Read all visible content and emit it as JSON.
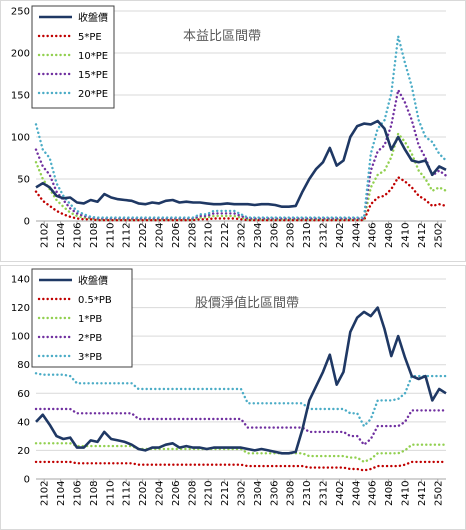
{
  "chart_data": [
    {
      "type": "line",
      "title": "本益比區間帶",
      "ylim": [
        0,
        250
      ],
      "yticks": [
        0,
        50,
        100,
        150,
        200,
        250
      ],
      "xticks": [
        "2102",
        "2104",
        "2106",
        "2108",
        "2110",
        "2112",
        "2202",
        "2204",
        "2206",
        "2208",
        "2210",
        "2212",
        "2302",
        "2304",
        "2306",
        "2308",
        "2310",
        "2312",
        "2402",
        "2404",
        "2406",
        "2408",
        "2410",
        "2412",
        "2502"
      ],
      "legend_position": "top-left",
      "series": [
        {
          "name": "收盤價",
          "color": "#1f3864",
          "style": "solid",
          "values": [
            40,
            45,
            40,
            30,
            27,
            28,
            22,
            21,
            25,
            23,
            32,
            28,
            26,
            25,
            24,
            21,
            20,
            22,
            21,
            24,
            25,
            22,
            23,
            22,
            22,
            21,
            20,
            20,
            21,
            20,
            20,
            20,
            19,
            20,
            20,
            19,
            17,
            17,
            18,
            35,
            50,
            62,
            70,
            87,
            66,
            72,
            100,
            113,
            116,
            115,
            119,
            110,
            85,
            100,
            85,
            72,
            70,
            72,
            55,
            65,
            61
          ]
        },
        {
          "name": "5*PE",
          "color": "#c00000",
          "style": "dotted",
          "values": [
            35,
            24,
            18,
            12,
            8,
            5,
            3,
            2,
            2,
            1,
            1,
            1,
            1,
            1,
            1,
            1,
            1,
            1,
            1,
            1,
            1,
            1,
            1,
            1,
            2,
            2,
            3,
            3,
            3,
            3,
            2,
            1,
            1,
            1,
            1,
            1,
            1,
            1,
            1,
            1,
            1,
            1,
            1,
            1,
            1,
            1,
            1,
            1,
            1,
            20,
            28,
            30,
            38,
            52,
            47,
            40,
            30,
            25,
            18,
            20,
            18
          ]
        },
        {
          "name": "10*PE",
          "color": "#92d050",
          "style": "dotted",
          "values": [
            70,
            50,
            38,
            25,
            17,
            10,
            6,
            4,
            3,
            2,
            2,
            2,
            2,
            2,
            2,
            2,
            2,
            2,
            2,
            2,
            2,
            2,
            2,
            2,
            4,
            4,
            6,
            6,
            6,
            6,
            4,
            2,
            2,
            2,
            2,
            2,
            2,
            2,
            2,
            2,
            2,
            2,
            2,
            2,
            2,
            2,
            2,
            2,
            2,
            40,
            55,
            60,
            76,
            104,
            94,
            80,
            60,
            50,
            36,
            40,
            36
          ]
        },
        {
          "name": "15*PE",
          "color": "#7030a0",
          "style": "dotted",
          "values": [
            85,
            65,
            55,
            35,
            25,
            15,
            9,
            6,
            4,
            3,
            3,
            3,
            3,
            3,
            3,
            3,
            3,
            3,
            3,
            3,
            3,
            3,
            3,
            3,
            6,
            6,
            9,
            9,
            9,
            9,
            6,
            3,
            3,
            3,
            3,
            3,
            3,
            3,
            3,
            3,
            3,
            3,
            3,
            3,
            3,
            3,
            3,
            3,
            3,
            60,
            83,
            90,
            114,
            156,
            141,
            120,
            90,
            75,
            54,
            60,
            54
          ]
        },
        {
          "name": "20*PE",
          "color": "#4bacc6",
          "style": "dotted",
          "values": [
            115,
            85,
            75,
            45,
            30,
            20,
            12,
            8,
            5,
            4,
            4,
            4,
            4,
            4,
            4,
            4,
            4,
            4,
            4,
            4,
            4,
            4,
            4,
            4,
            8,
            8,
            12,
            12,
            12,
            12,
            8,
            4,
            4,
            4,
            4,
            4,
            4,
            4,
            4,
            4,
            4,
            4,
            4,
            4,
            4,
            4,
            4,
            4,
            4,
            80,
            110,
            120,
            152,
            220,
            188,
            160,
            120,
            100,
            94,
            80,
            72
          ]
        }
      ]
    },
    {
      "type": "line",
      "title": "股價淨值比區間帶",
      "ylim": [
        0,
        140
      ],
      "yticks": [
        0,
        20,
        40,
        60,
        80,
        100,
        120,
        140
      ],
      "xticks": [
        "2102",
        "2104",
        "2106",
        "2108",
        "2110",
        "2112",
        "2202",
        "2204",
        "2206",
        "2208",
        "2210",
        "2212",
        "2302",
        "2304",
        "2306",
        "2308",
        "2310",
        "2312",
        "2402",
        "2404",
        "2406",
        "2408",
        "2410",
        "2412",
        "2502"
      ],
      "legend_position": "top-left",
      "series": [
        {
          "name": "收盤價",
          "color": "#1f3864",
          "style": "solid",
          "values": [
            40,
            45,
            38,
            30,
            28,
            29,
            22,
            22,
            27,
            26,
            33,
            28,
            27,
            26,
            24,
            21,
            20,
            22,
            22,
            24,
            25,
            22,
            23,
            22,
            22,
            21,
            22,
            22,
            22,
            22,
            22,
            21,
            20,
            21,
            20,
            19,
            18,
            18,
            19,
            35,
            55,
            65,
            75,
            87,
            66,
            75,
            103,
            113,
            117,
            114,
            120,
            105,
            86,
            100,
            85,
            72,
            70,
            72,
            55,
            63,
            60
          ]
        },
        {
          "name": "0.5*PB",
          "color": "#c00000",
          "style": "dotted",
          "values": [
            12,
            12,
            12,
            12,
            12,
            12,
            11,
            11,
            11,
            11,
            11,
            11,
            11,
            11,
            11,
            10,
            10,
            10,
            10,
            10,
            10,
            10,
            10,
            10,
            10,
            10,
            10,
            10,
            10,
            10,
            10,
            9,
            9,
            9,
            9,
            9,
            9,
            9,
            9,
            9,
            8,
            8,
            8,
            8,
            8,
            8,
            7,
            7,
            6,
            7,
            9,
            9,
            9,
            9,
            10,
            12,
            12,
            12,
            12,
            12,
            12
          ]
        },
        {
          "name": "1*PB",
          "color": "#92d050",
          "style": "dotted",
          "values": [
            25,
            25,
            25,
            25,
            25,
            25,
            23,
            23,
            23,
            23,
            23,
            23,
            23,
            23,
            23,
            21,
            21,
            21,
            21,
            21,
            21,
            21,
            21,
            21,
            21,
            21,
            21,
            21,
            21,
            21,
            21,
            18,
            18,
            18,
            18,
            18,
            18,
            18,
            18,
            18,
            16,
            16,
            16,
            16,
            16,
            16,
            15,
            15,
            12,
            14,
            18,
            18,
            18,
            18,
            20,
            24,
            24,
            24,
            24,
            24,
            24
          ]
        },
        {
          "name": "2*PB",
          "color": "#7030a0",
          "style": "dotted",
          "values": [
            49,
            49,
            49,
            49,
            49,
            49,
            46,
            46,
            46,
            46,
            46,
            46,
            46,
            46,
            46,
            42,
            42,
            42,
            42,
            42,
            42,
            42,
            42,
            42,
            42,
            42,
            42,
            42,
            42,
            42,
            42,
            36,
            36,
            36,
            36,
            36,
            36,
            36,
            36,
            36,
            33,
            33,
            33,
            33,
            33,
            33,
            30,
            30,
            24,
            28,
            37,
            37,
            37,
            37,
            40,
            48,
            48,
            48,
            48,
            48,
            48
          ]
        },
        {
          "name": "3*PB",
          "color": "#4bacc6",
          "style": "dotted",
          "values": [
            74,
            73,
            73,
            73,
            73,
            72,
            67,
            67,
            67,
            67,
            67,
            67,
            67,
            67,
            67,
            63,
            63,
            63,
            63,
            63,
            63,
            63,
            63,
            63,
            63,
            63,
            63,
            63,
            63,
            63,
            63,
            53,
            53,
            53,
            53,
            53,
            53,
            53,
            53,
            53,
            49,
            49,
            49,
            49,
            49,
            49,
            46,
            46,
            37,
            42,
            55,
            55,
            55,
            56,
            60,
            72,
            72,
            72,
            72,
            72,
            72
          ]
        }
      ]
    }
  ]
}
